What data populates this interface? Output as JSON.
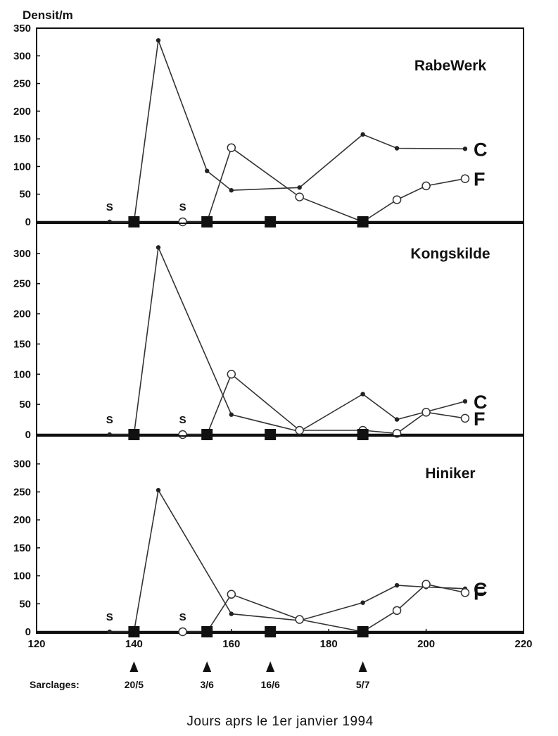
{
  "chart_data": {
    "type": "line",
    "ylabel": "Densit/m",
    "xlabel": "Jours aprs le 1er janvier 1994",
    "xlim": [
      120,
      220
    ],
    "ylim": [
      0,
      350
    ],
    "x_ticks": [
      120,
      140,
      160,
      180,
      200,
      220
    ],
    "colors": {
      "C": "#333333",
      "F": "#333333",
      "axis": "#111111",
      "background": "#ffffff"
    },
    "panels": [
      {
        "title": "RabeWerk",
        "y_ticks": [
          0,
          50,
          100,
          150,
          200,
          250,
          300,
          350
        ],
        "series": [
          {
            "name": "C",
            "marker": "filled-circle",
            "x": [
              135,
              140,
              145,
              155,
              160,
              174,
              187,
              194,
              208
            ],
            "y": [
              0,
              0,
              328,
              92,
              57,
              62,
              158,
              133,
              132
            ]
          },
          {
            "name": "F",
            "marker": "open-circle",
            "x": [
              150,
              155,
              160,
              174,
              187,
              194,
              200,
              208
            ],
            "y": [
              0,
              0,
              134,
              45,
              0,
              40,
              65,
              78
            ]
          }
        ],
        "s_markers": [
          135,
          150
        ],
        "squares": [
          140,
          155,
          168,
          187
        ]
      },
      {
        "title": "Kongskilde",
        "y_ticks": [
          0,
          50,
          100,
          150,
          200,
          250,
          300
        ],
        "series": [
          {
            "name": "C",
            "marker": "filled-circle",
            "x": [
              135,
              140,
              145,
              160,
              174,
              187,
              194,
              208
            ],
            "y": [
              0,
              0,
              310,
              33,
              5,
              67,
              25,
              55
            ]
          },
          {
            "name": "F",
            "marker": "open-circle",
            "x": [
              150,
              155,
              160,
              174,
              187,
              194,
              200,
              208
            ],
            "y": [
              0,
              0,
              100,
              7,
              7,
              2,
              37,
              27
            ]
          }
        ],
        "s_markers": [
          135,
          150
        ],
        "squares": [
          140,
          155,
          168,
          187
        ]
      },
      {
        "title": "Hiniker",
        "y_ticks": [
          0,
          50,
          100,
          150,
          200,
          250,
          300
        ],
        "series": [
          {
            "name": "C",
            "marker": "filled-circle",
            "x": [
              135,
              140,
              145,
              160,
              174,
              187,
              194,
              200,
              208
            ],
            "y": [
              0,
              0,
              253,
              32,
              20,
              52,
              83,
              80,
              77
            ]
          },
          {
            "name": "F",
            "marker": "open-circle",
            "x": [
              150,
              155,
              160,
              174,
              187,
              194,
              200,
              208
            ],
            "y": [
              0,
              0,
              67,
              22,
              0,
              38,
              85,
              70
            ]
          }
        ],
        "s_markers": [
          135,
          150
        ],
        "squares": [
          140,
          155,
          168,
          187
        ]
      }
    ],
    "s_label": "S",
    "sarclages": {
      "label": "Sarclages:",
      "days": [
        140,
        155,
        168,
        187
      ],
      "dates": [
        "20/5",
        "3/6",
        "16/6",
        "5/7"
      ]
    }
  }
}
